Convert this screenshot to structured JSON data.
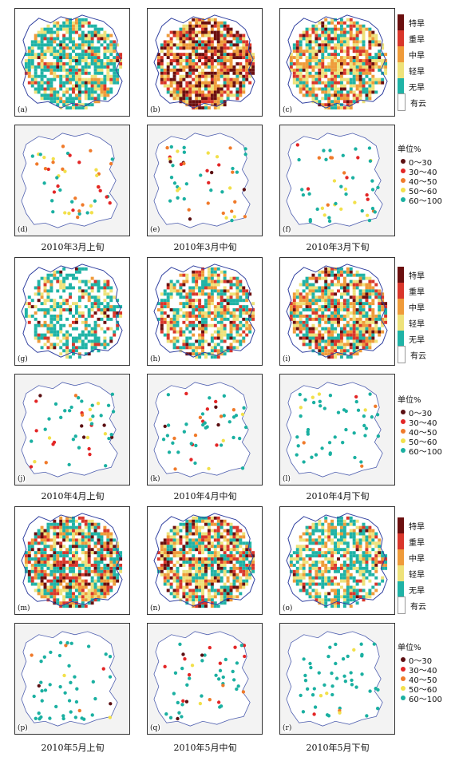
{
  "drought_legend": {
    "items": [
      {
        "label": "特旱",
        "color": "#6b0f0f"
      },
      {
        "label": "重旱",
        "color": "#d9362b"
      },
      {
        "label": "中旱",
        "color": "#ef9b3a"
      },
      {
        "label": "轻旱",
        "color": "#eee27a"
      },
      {
        "label": "无旱",
        "color": "#1fb3a6"
      },
      {
        "label": "有云",
        "color": "#ffffff"
      }
    ]
  },
  "station_legend": {
    "title": "单位%",
    "items": [
      {
        "label": "0～30",
        "color": "#5b0f12"
      },
      {
        "label": "30～40",
        "color": "#e32626"
      },
      {
        "label": "40～50",
        "color": "#f07a2a"
      },
      {
        "label": "50～60",
        "color": "#f2e04a"
      },
      {
        "label": "60～100",
        "color": "#1ab0a1"
      }
    ]
  },
  "groups": [
    {
      "caption": "2010年3月上旬",
      "caption2": "2010年3月中旬",
      "caption3": "2010年3月下旬"
    },
    {
      "caption": "2010年4月上旬",
      "caption2": "2010年4月中旬",
      "caption3": "2010年4月下旬"
    },
    {
      "caption": "2010年5月上旬",
      "caption2": "2010年5月中旬",
      "caption3": "2010年5月下旬"
    }
  ],
  "panels": [
    {
      "label": "(a)"
    },
    {
      "label": "(b)"
    },
    {
      "label": "(c)"
    },
    {
      "label": "(d)"
    },
    {
      "label": "(e)"
    },
    {
      "label": "(f)"
    },
    {
      "label": "(g)"
    },
    {
      "label": "(h)"
    },
    {
      "label": "(i)"
    },
    {
      "label": "(j)"
    },
    {
      "label": "(k)"
    },
    {
      "label": "(l)"
    },
    {
      "label": "(m)"
    },
    {
      "label": "(n)"
    },
    {
      "label": "(o)"
    },
    {
      "label": "(p)"
    },
    {
      "label": "(q)"
    },
    {
      "label": "(r)"
    }
  ],
  "captions": [
    "2010年3月上旬",
    "2010年3月中旬",
    "2010年3月下旬",
    "2010年4月上旬",
    "2010年4月中旬",
    "2010年4月下旬",
    "2010年5月上旬",
    "2010年5月中旬",
    "2010年5月下旬"
  ]
}
